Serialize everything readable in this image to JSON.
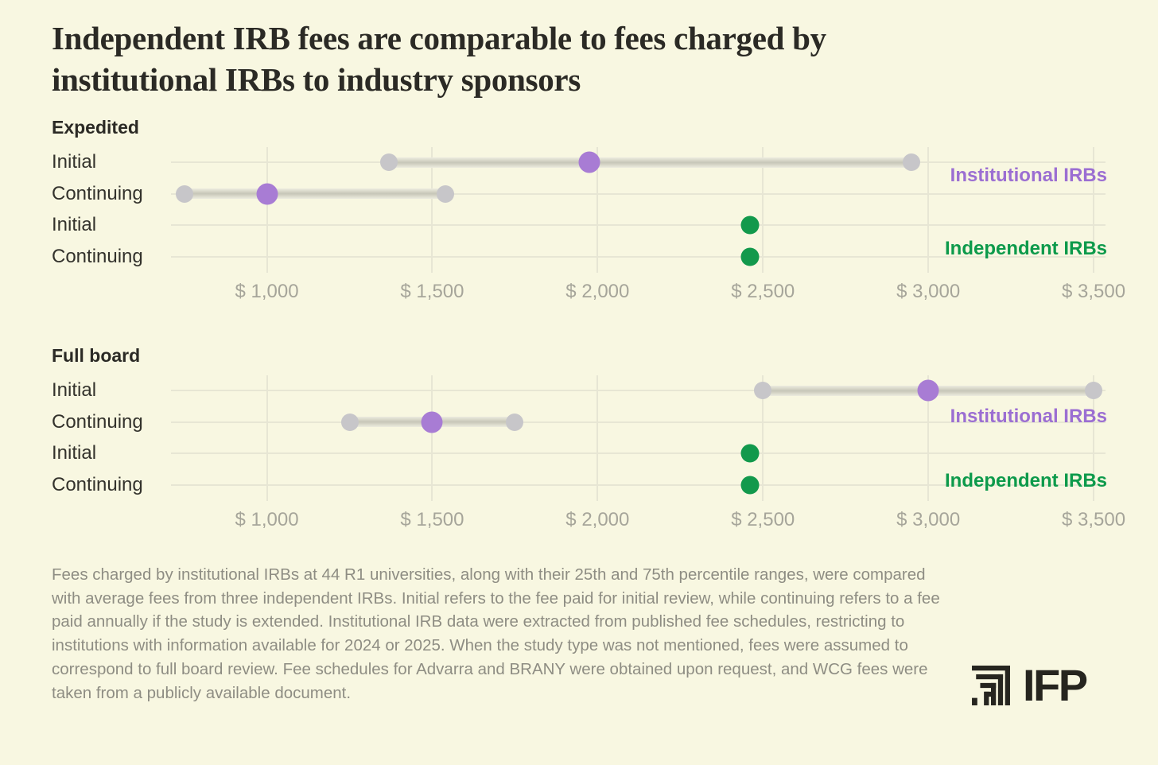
{
  "title": "Independent IRB fees are comparable to fees charged by institutional IRBs to industry sponsors",
  "footnote": "Fees charged by institutional IRBs at 44 R1 universities, along with their 25th and 75th percentile ranges, were compared with average fees from three independent IRBs. Initial refers to the fee paid for initial review, while continuing refers to a fee paid annually if the study is extended. Institutional IRB data were extracted from published fee schedules, restricting to institutions with information available for 2024 or 2025. When the study type was not mentioned, fees were assumed to correspond to full board review. Fee schedules for Advarra and BRANY were obtained upon request, and WCG fees were taken from a publicly available document.",
  "logo": {
    "text": "IFP"
  },
  "colors": {
    "background": "#f8f7e1",
    "title_text": "#2b2a25",
    "row_label_text": "#33322c",
    "tick_text": "#a6a59a",
    "footnote_text": "#8e8d83",
    "grid": "#e7e6d4",
    "range_bar": "#d8d7c9",
    "range_dot": "#c7c6c9",
    "institutional_median_dot": "#a87cd4",
    "institutional_legend_text": "#9b6ed2",
    "independent_dot": "#12994c",
    "independent_legend_text": "#0d9a4b"
  },
  "chart_data": [
    {
      "type": "range-dot",
      "panel_title": "Expedited",
      "axis": {
        "min": 710,
        "max": 3536,
        "ticks": [
          1000,
          1500,
          2000,
          2500,
          3000,
          3500
        ],
        "tick_labels": [
          "$ 1,000",
          "$ 1,500",
          "$ 2,000",
          "$ 2,500",
          "$ 3,000",
          "$ 3,500"
        ],
        "grid": true
      },
      "legend": [
        {
          "label": "Institutional IRBs",
          "color": "#9b6ed2"
        },
        {
          "label": "Independent IRBs",
          "color": "#0d9a4b"
        }
      ],
      "legend_position": "right",
      "rows": [
        {
          "label": "Initial",
          "series": "Institutional IRBs",
          "p25": 1370,
          "median": 1975,
          "p75": 2950
        },
        {
          "label": "Continuing",
          "series": "Institutional IRBs",
          "p25": 750,
          "median": 1000,
          "p75": 1540
        },
        {
          "label": "Initial",
          "series": "Independent IRBs",
          "average": 2460
        },
        {
          "label": "Continuing",
          "series": "Independent IRBs",
          "average": 2460
        }
      ]
    },
    {
      "type": "range-dot",
      "panel_title": "Full board",
      "axis": {
        "min": 710,
        "max": 3536,
        "ticks": [
          1000,
          1500,
          2000,
          2500,
          3000,
          3500
        ],
        "tick_labels": [
          "$ 1,000",
          "$ 1,500",
          "$ 2,000",
          "$ 2,500",
          "$ 3,000",
          "$ 3,500"
        ],
        "grid": true
      },
      "legend": [
        {
          "label": "Institutional IRBs",
          "color": "#9b6ed2"
        },
        {
          "label": "Independent IRBs",
          "color": "#0d9a4b"
        }
      ],
      "legend_position": "right",
      "rows": [
        {
          "label": "Initial",
          "series": "Institutional IRBs",
          "p25": 2500,
          "median": 3000,
          "p75": 3500
        },
        {
          "label": "Continuing",
          "series": "Institutional IRBs",
          "p25": 1250,
          "median": 1500,
          "p75": 1750
        },
        {
          "label": "Initial",
          "series": "Independent IRBs",
          "average": 2460
        },
        {
          "label": "Continuing",
          "series": "Independent IRBs",
          "average": 2460
        }
      ]
    }
  ]
}
